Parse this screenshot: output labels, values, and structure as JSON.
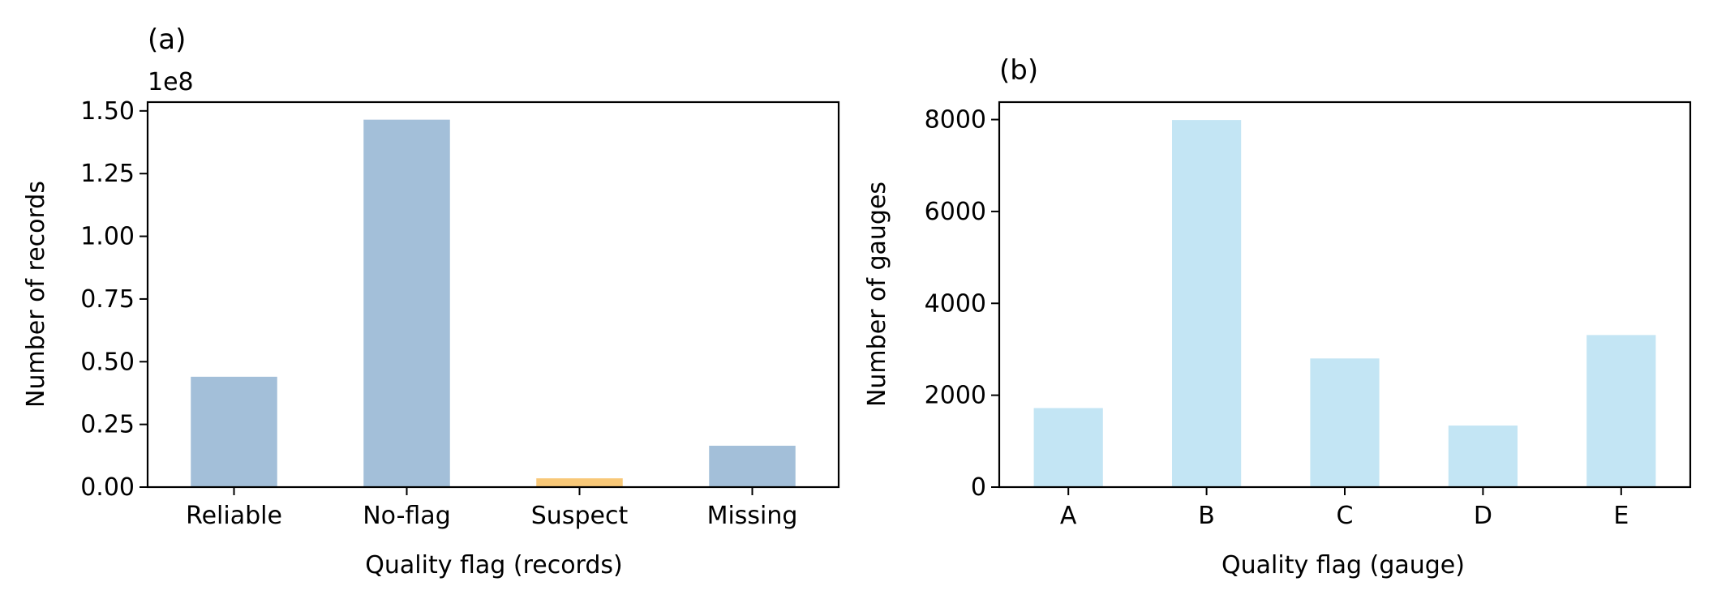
{
  "chart_data": [
    {
      "type": "bar",
      "title": "(a)",
      "offset_text": "1e8",
      "xlabel": "Quality flag (records)",
      "ylabel": "Number of records",
      "categories": [
        "Reliable",
        "No-flag",
        "Suspect",
        "Missing"
      ],
      "values": [
        44000000,
        146500000,
        3500000,
        16500000
      ],
      "bar_colors": [
        "#a3bfd9",
        "#a3bfd9",
        "#f8c878",
        "#a3bfd9"
      ],
      "ylim": [
        0,
        153500000
      ],
      "yticks": [
        0,
        25000000,
        50000000,
        75000000,
        100000000,
        125000000,
        150000000
      ],
      "ytick_labels": [
        "0.00",
        "0.25",
        "0.50",
        "0.75",
        "1.00",
        "1.25",
        "1.50"
      ],
      "grid": false
    },
    {
      "type": "bar",
      "title": "(b)",
      "xlabel": "Quality flag (gauge)",
      "ylabel": "Number of gauges",
      "categories": [
        "A",
        "B",
        "C",
        "D",
        "E"
      ],
      "values": [
        1720,
        7990,
        2800,
        1340,
        3310
      ],
      "bar_colors": [
        "#c3e5f4",
        "#c3e5f4",
        "#c3e5f4",
        "#c3e5f4",
        "#c3e5f4"
      ],
      "ylim": [
        0,
        8380
      ],
      "yticks": [
        0,
        2000,
        4000,
        6000,
        8000
      ],
      "ytick_labels": [
        "0",
        "2000",
        "4000",
        "6000",
        "8000"
      ],
      "grid": false
    }
  ]
}
